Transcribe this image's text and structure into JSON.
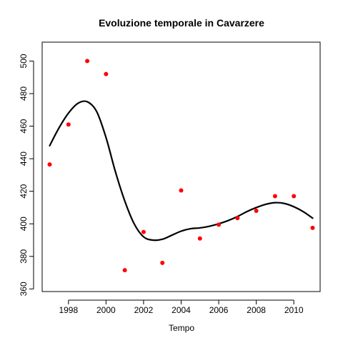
{
  "chart_data": {
    "type": "scatter",
    "title": "Evoluzione temporale in Cavarzere",
    "xlabel": "Tempo",
    "ylabel": "",
    "xlim": [
      1996.6,
      2011.4
    ],
    "ylim": [
      358.4,
      511.6
    ],
    "x_ticks": [
      1998,
      2000,
      2002,
      2004,
      2006,
      2008,
      2010
    ],
    "y_ticks": [
      360,
      380,
      400,
      420,
      440,
      460,
      480,
      500
    ],
    "grid": false,
    "legend": "none",
    "point_color": "#ff0000",
    "curve_color": "#000000",
    "series": [
      {
        "type": "scatter",
        "x": [
          1997,
          1998,
          1999,
          2000,
          2001,
          2002,
          2003,
          2004,
          2005,
          2006,
          2007,
          2008,
          2009,
          2010,
          2011
        ],
        "y": [
          436.5,
          461,
          500,
          492,
          371.5,
          395,
          376,
          420.5,
          391,
          399.5,
          403.5,
          408,
          417,
          417,
          397.5
        ]
      },
      {
        "type": "line",
        "x": [
          1997,
          1997.5,
          1998,
          1998.5,
          1999,
          1999.5,
          2000,
          2000.5,
          2001,
          2001.5,
          2002,
          2002.5,
          2003,
          2003.5,
          2004,
          2004.5,
          2005,
          2005.5,
          2006,
          2006.5,
          2007,
          2007.5,
          2008,
          2008.5,
          2009,
          2009.5,
          2010,
          2010.5,
          2011
        ],
        "y": [
          448,
          459,
          468,
          474,
          475,
          469,
          453,
          432,
          414,
          400,
          392,
          390,
          390.5,
          393,
          395.5,
          397,
          397.5,
          398.5,
          400,
          402,
          404.5,
          407.5,
          410,
          412,
          413,
          412.5,
          410.5,
          407.5,
          403.5
        ]
      }
    ]
  }
}
